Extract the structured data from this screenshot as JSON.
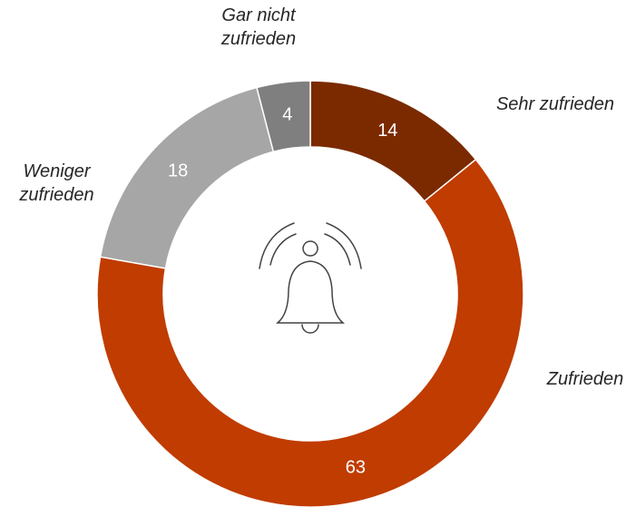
{
  "chart_data": {
    "type": "pie",
    "categories": [
      "Sehr zufrieden",
      "Zufrieden",
      "Weniger zufrieden",
      "Gar nicht zufrieden"
    ],
    "values": [
      14,
      63,
      18,
      4
    ],
    "colors": [
      "#7b2a00",
      "#c03c00",
      "#a6a6a6",
      "#7f7f7f"
    ]
  }
}
